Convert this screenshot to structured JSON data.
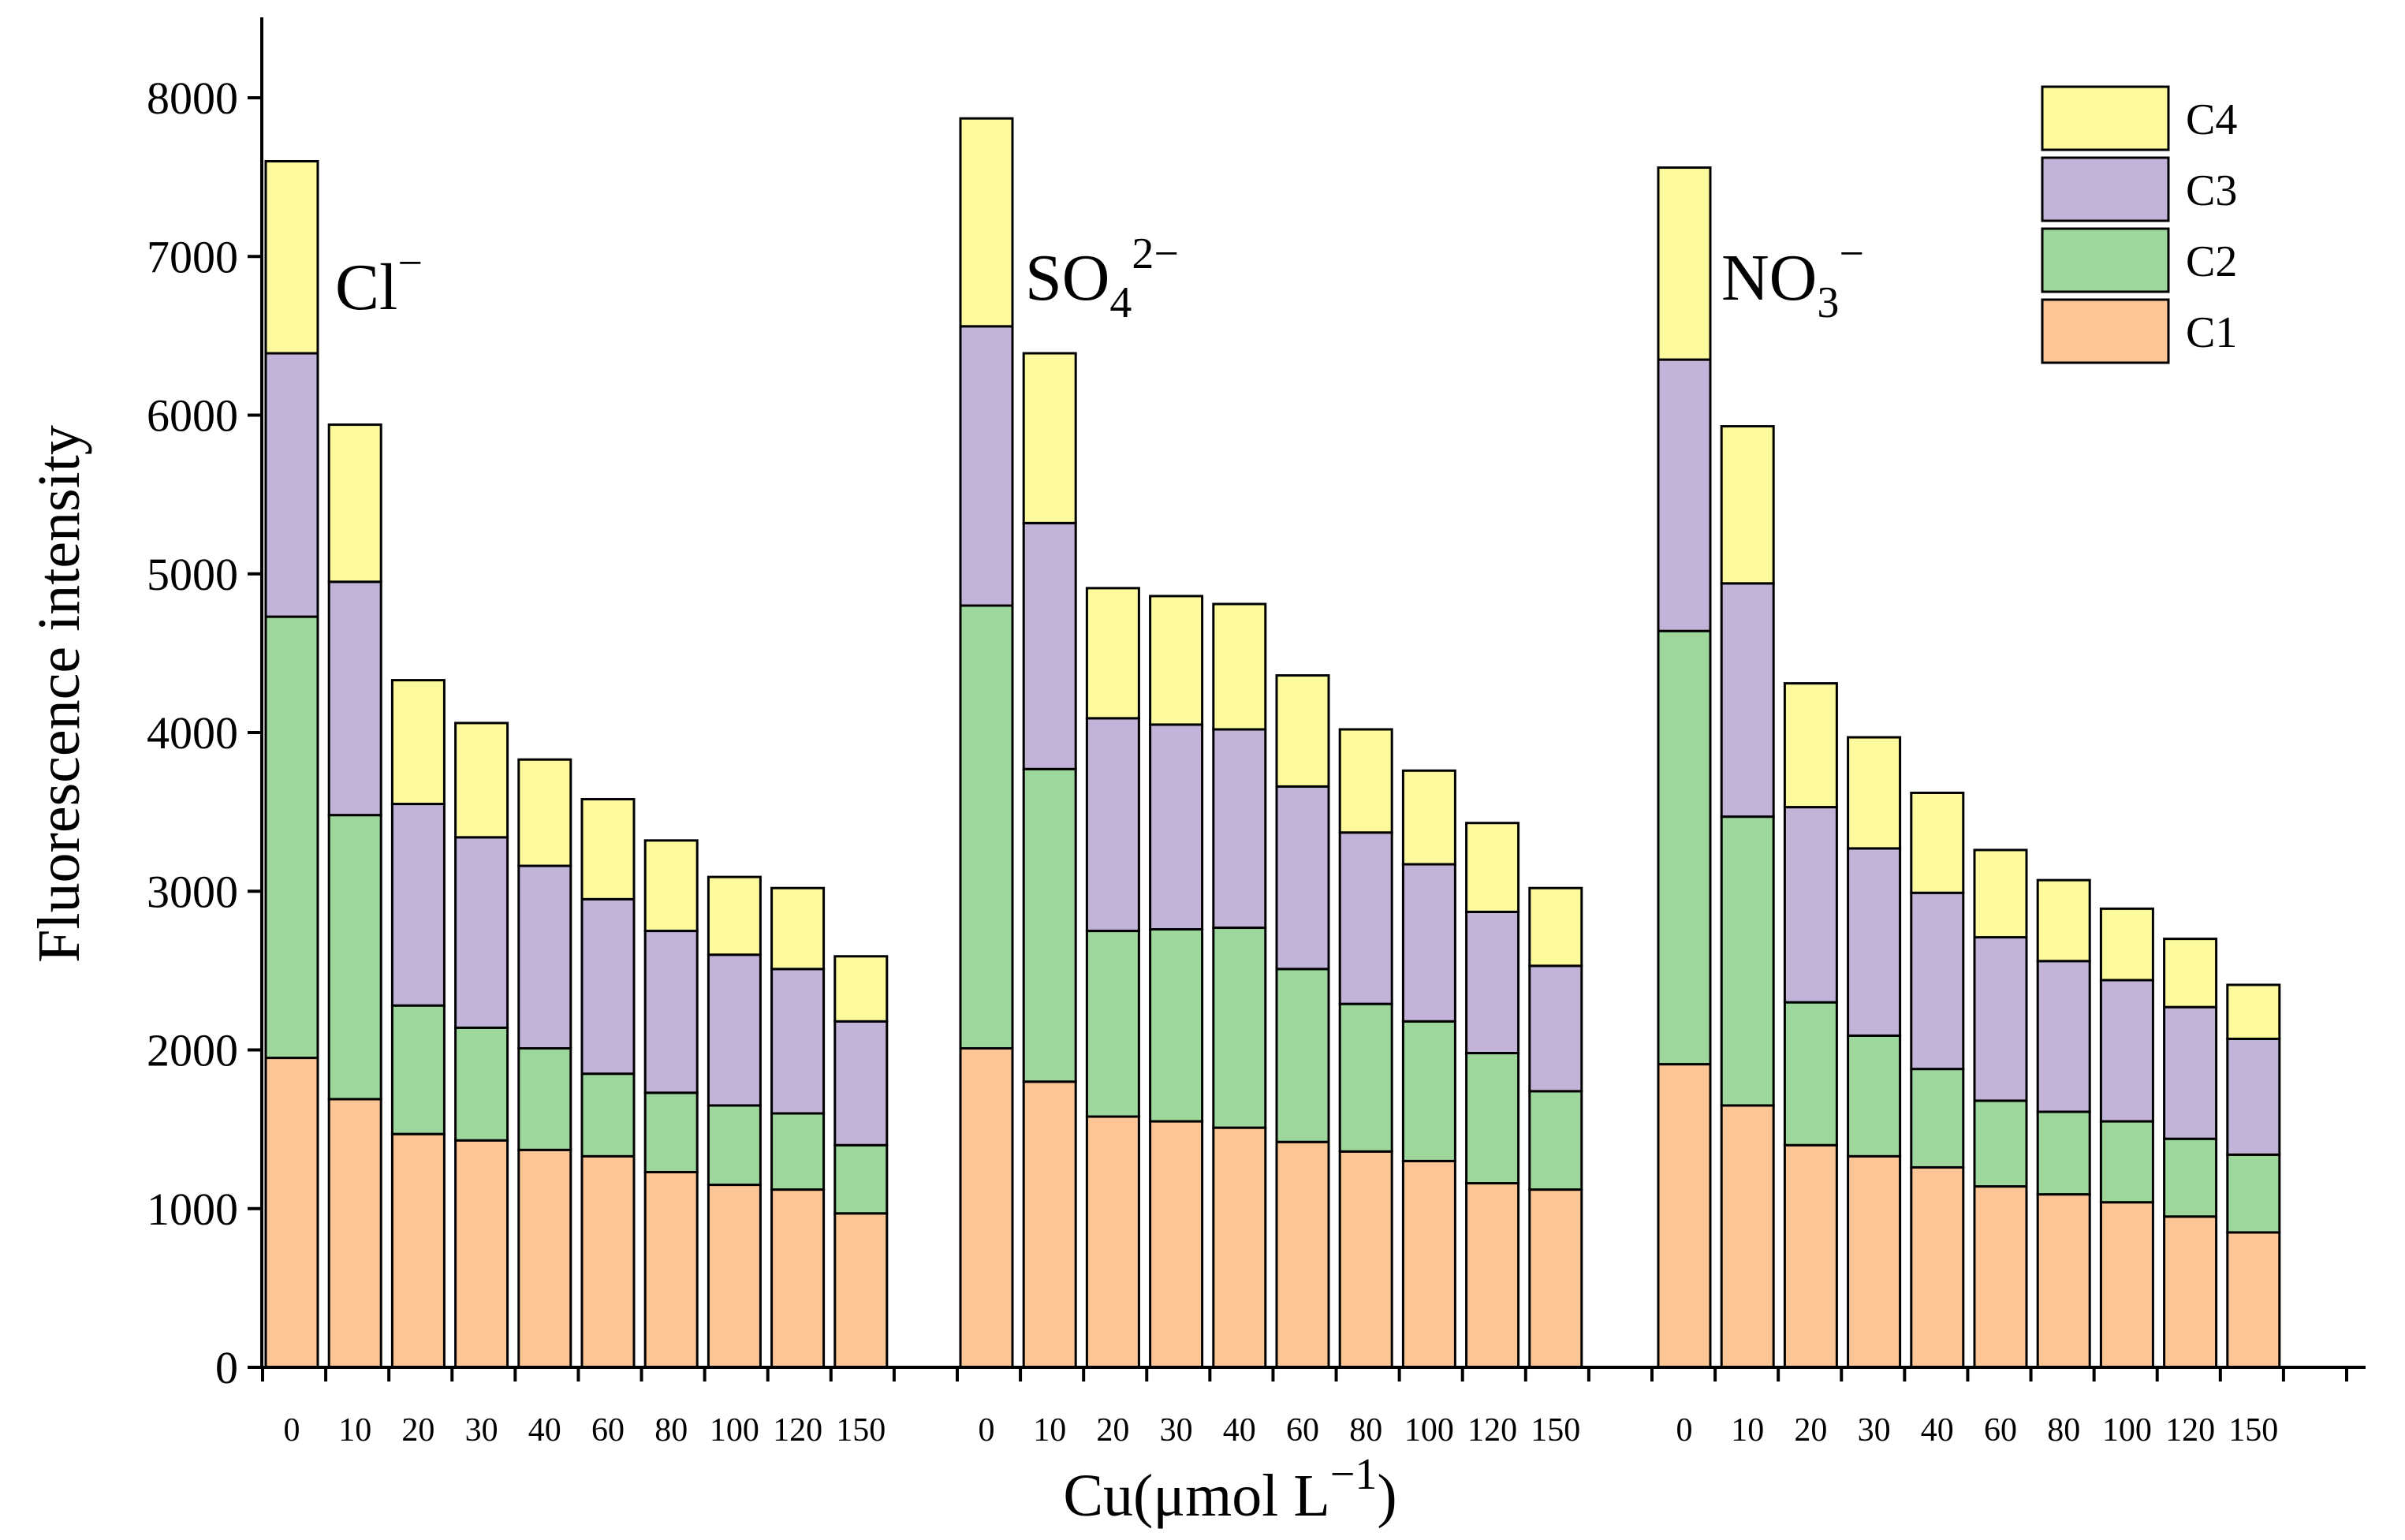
{
  "chart_data": {
    "type": "bar",
    "stacked": true,
    "ylabel": "Fluorescence intensity",
    "xlabel": "Cu(μmol L",
    "xlabel_sup": "−1",
    "xlabel_close": ")",
    "ylim": [
      0,
      8000
    ],
    "y_ticks": [
      0,
      1000,
      2000,
      3000,
      4000,
      5000,
      6000,
      7000,
      8000
    ],
    "categories": [
      "0",
      "10",
      "20",
      "30",
      "40",
      "60",
      "80",
      "100",
      "120",
      "150"
    ],
    "group_labels": [
      {
        "base": "Cl",
        "sup": "−",
        "sub": ""
      },
      {
        "base": "SO",
        "sub": "4",
        "sup": "2−"
      },
      {
        "base": "NO",
        "sub": "3",
        "sup": "−"
      }
    ],
    "series_names": [
      "C1",
      "C2",
      "C3",
      "C4"
    ],
    "colors": {
      "C1": "#FCC595",
      "C2": "#9DD79C",
      "C3": "#C2B3D9",
      "C4": "#FCFA9C"
    },
    "legend": {
      "position": "top-right",
      "order": [
        "C4",
        "C3",
        "C2",
        "C1"
      ]
    },
    "groups": [
      {
        "name": "Cl−",
        "C1": [
          1950,
          1690,
          1470,
          1430,
          1370,
          1330,
          1230,
          1150,
          1120,
          970
        ],
        "C2": [
          2780,
          1790,
          810,
          710,
          640,
          520,
          500,
          500,
          480,
          430
        ],
        "C3": [
          1660,
          1470,
          1270,
          1200,
          1150,
          1100,
          1020,
          950,
          910,
          780
        ],
        "C4": [
          1210,
          990,
          780,
          720,
          670,
          630,
          570,
          490,
          510,
          410
        ]
      },
      {
        "name": "SO42−",
        "C1": [
          2010,
          1800,
          1580,
          1550,
          1510,
          1420,
          1360,
          1300,
          1160,
          1120
        ],
        "C2": [
          2790,
          1970,
          1170,
          1210,
          1260,
          1090,
          930,
          880,
          820,
          620
        ],
        "C3": [
          1760,
          1550,
          1340,
          1290,
          1250,
          1150,
          1080,
          990,
          890,
          790
        ],
        "C4": [
          1310,
          1070,
          820,
          810,
          790,
          700,
          650,
          590,
          560,
          490
        ]
      },
      {
        "name": "NO3−",
        "C1": [
          1910,
          1650,
          1400,
          1330,
          1260,
          1140,
          1090,
          1040,
          950,
          850
        ],
        "C2": [
          2730,
          1820,
          900,
          760,
          620,
          540,
          520,
          510,
          490,
          490
        ],
        "C3": [
          1710,
          1470,
          1230,
          1180,
          1110,
          1030,
          950,
          890,
          830,
          730
        ],
        "C4": [
          1210,
          990,
          780,
          700,
          630,
          550,
          510,
          450,
          430,
          340
        ]
      }
    ]
  }
}
